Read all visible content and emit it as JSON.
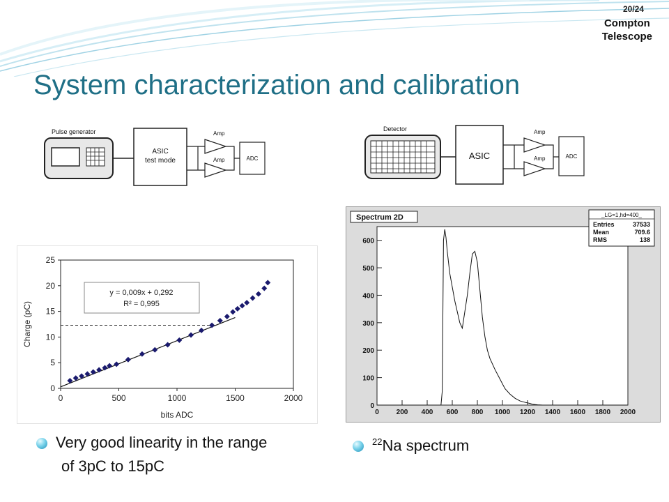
{
  "header": {
    "page_number": "20/24",
    "corner_line1": "Compton",
    "corner_line2": "Telescope"
  },
  "title": "System characterization and calibration",
  "diagram_left": {
    "generator_label": "Pulse generator",
    "asic_line1": "ASIC",
    "asic_line2": "test mode",
    "amp1": "Amp",
    "amp2": "Amp",
    "adc": "ADC"
  },
  "diagram_right": {
    "detector_label": "Detector",
    "asic": "ASIC",
    "amp1": "Amp",
    "amp2": "Amp",
    "adc": "ADC"
  },
  "linearity_chart": {
    "chart_data": {
      "type": "scatter",
      "xlabel": "bits ADC",
      "ylabel": "Charge (pC)",
      "xlim": [
        0,
        2000
      ],
      "ylim": [
        0,
        25
      ],
      "x_ticks": [
        "0",
        "500",
        "1000",
        "1500",
        "2000"
      ],
      "y_ticks": [
        "0",
        "5",
        "10",
        "15",
        "20",
        "25"
      ],
      "points_x": [
        80,
        130,
        180,
        230,
        280,
        330,
        380,
        420,
        480,
        580,
        700,
        810,
        920,
        1020,
        1120,
        1210,
        1300,
        1370,
        1430,
        1480,
        1520,
        1560,
        1600,
        1650,
        1700,
        1750,
        1780
      ],
      "points_y": [
        1.5,
        2.0,
        2.4,
        2.8,
        3.2,
        3.6,
        4.0,
        4.4,
        4.7,
        5.6,
        6.7,
        7.5,
        8.5,
        9.4,
        10.4,
        11.3,
        12.3,
        13.2,
        14.0,
        14.9,
        15.5,
        16.1,
        16.7,
        17.6,
        18.4,
        19.5,
        20.6
      ],
      "trendline": {
        "x": [
          0,
          1500
        ],
        "y": [
          0.292,
          13.792
        ]
      },
      "threshold_line": {
        "x": [
          0,
          1300
        ],
        "y": [
          12.3,
          12.3
        ]
      },
      "equation": "y = 0,009x + 0,292",
      "r_squared": "R² = 0,995"
    }
  },
  "spectrum_chart": {
    "chart_data": {
      "type": "line",
      "title": "Spectrum 2D",
      "stats": {
        "header": "_LG=1,hd=400_",
        "rows": [
          {
            "label": "Entries",
            "value": "37533"
          },
          {
            "label": "Mean",
            "value": "709.6"
          },
          {
            "label": "RMS",
            "value": "138"
          }
        ]
      },
      "xlim": [
        0,
        2000
      ],
      "ylim": [
        0,
        650
      ],
      "x_ticks": [
        "0",
        "200",
        "400",
        "600",
        "800",
        "1000",
        "1200",
        "1400",
        "1600",
        "1800",
        "2000"
      ],
      "y_ticks": [
        "0",
        "100",
        "200",
        "300",
        "400",
        "500",
        "600"
      ],
      "x": [
        0,
        510,
        520,
        530,
        540,
        550,
        560,
        570,
        580,
        600,
        620,
        640,
        660,
        680,
        700,
        720,
        740,
        760,
        780,
        800,
        820,
        840,
        860,
        880,
        900,
        940,
        980,
        1020,
        1060,
        1100,
        1140,
        1180,
        1220,
        1240,
        1280,
        1320,
        2000
      ],
      "y": [
        0,
        0,
        50,
        600,
        640,
        610,
        560,
        520,
        480,
        430,
        380,
        340,
        300,
        280,
        340,
        400,
        480,
        550,
        560,
        520,
        420,
        320,
        250,
        200,
        170,
        130,
        95,
        60,
        40,
        25,
        15,
        10,
        6,
        3,
        1,
        0,
        0
      ]
    }
  },
  "bullets": {
    "left_line1": "Very good linearity in the range",
    "left_line2": "of 3pC to 15pC",
    "right_sup": "22",
    "right_text": "Na spectrum"
  },
  "colors": {
    "title": "#1f6f86",
    "markers": "#1a1a6e"
  }
}
